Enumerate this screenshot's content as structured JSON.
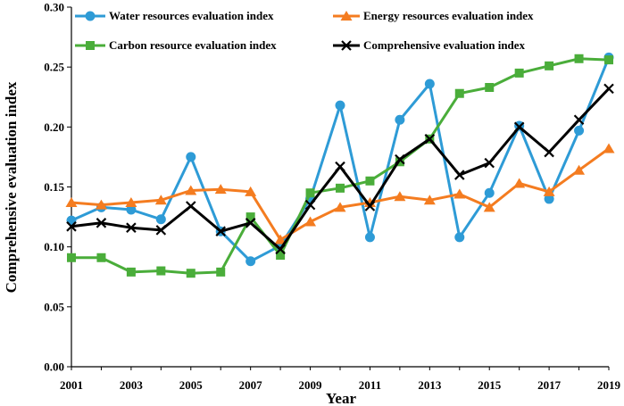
{
  "chart_data": {
    "type": "line",
    "title": "",
    "xlabel": "Year",
    "ylabel": "Comprehensive evaluation index",
    "ylim": [
      0,
      0.3
    ],
    "xlim": [
      2001,
      2019
    ],
    "grid": false,
    "legend_position": "top",
    "x": [
      2001,
      2002,
      2003,
      2004,
      2005,
      2006,
      2007,
      2008,
      2009,
      2010,
      2011,
      2012,
      2013,
      2014,
      2015,
      2016,
      2017,
      2018,
      2019
    ],
    "x_tick_labels": [
      "2001",
      "2003",
      "2005",
      "2007",
      "2009",
      "2011",
      "2013",
      "2015",
      "2017",
      "2019"
    ],
    "x_tick_values": [
      2001,
      2003,
      2005,
      2007,
      2009,
      2011,
      2013,
      2015,
      2017,
      2019
    ],
    "y_tick_labels": [
      "0.00",
      "0.05",
      "0.10",
      "0.15",
      "0.20",
      "0.25",
      "0.30"
    ],
    "y_tick_values": [
      0,
      0.05,
      0.1,
      0.15,
      0.2,
      0.25,
      0.3
    ],
    "series": [
      {
        "name": "Water resources evaluation index",
        "color": "#2e9bd6",
        "marker": "circle",
        "values": [
          0.122,
          0.133,
          0.131,
          0.123,
          0.175,
          0.113,
          0.088,
          0.101,
          0.14,
          0.218,
          0.108,
          0.206,
          0.236,
          0.108,
          0.145,
          0.201,
          0.14,
          0.197,
          0.258
        ]
      },
      {
        "name": "Energy resources evaluation index",
        "color": "#f47c20",
        "marker": "triangle",
        "values": [
          0.137,
          0.135,
          0.137,
          0.139,
          0.147,
          0.148,
          0.146,
          0.106,
          0.121,
          0.133,
          0.137,
          0.142,
          0.139,
          0.144,
          0.133,
          0.153,
          0.146,
          0.164,
          0.182
        ]
      },
      {
        "name": "Carbon resource evaluation index",
        "color": "#4aad3a",
        "marker": "square",
        "values": [
          0.091,
          0.091,
          0.079,
          0.08,
          0.078,
          0.079,
          0.125,
          0.093,
          0.145,
          0.149,
          0.155,
          0.171,
          0.19,
          0.228,
          0.233,
          0.245,
          0.251,
          0.257,
          0.256
        ]
      },
      {
        "name": "Comprehensive evaluation index",
        "color": "#000000",
        "marker": "x",
        "values": [
          0.117,
          0.12,
          0.116,
          0.114,
          0.134,
          0.113,
          0.12,
          0.098,
          0.135,
          0.167,
          0.134,
          0.173,
          0.19,
          0.16,
          0.17,
          0.2,
          0.179,
          0.206,
          0.232
        ]
      }
    ]
  }
}
